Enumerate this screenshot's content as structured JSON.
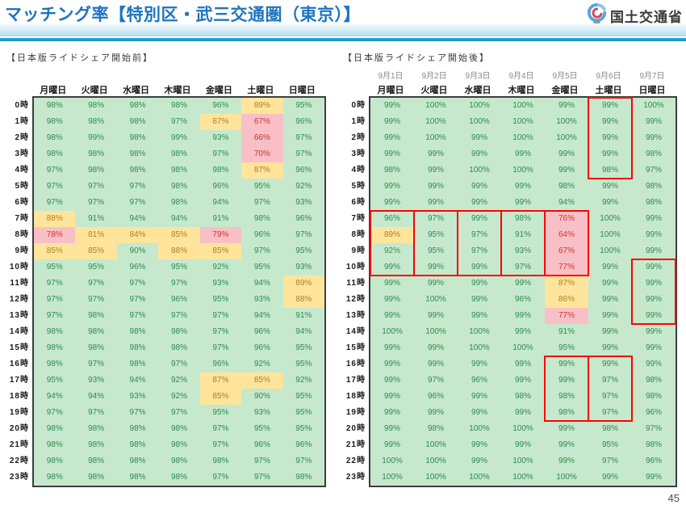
{
  "header": {
    "title": "マッチング率【特別区・武三交通圏（東京）】",
    "logo_text": "国土交通省"
  },
  "page_number": "45",
  "colors": {
    "title-blue": "#1e74c0",
    "teal": "#2aa9cf",
    "green-bg": "#c6e9ce",
    "green-text": "#2e8a4c",
    "yellow-bg": "#ffe49c",
    "yellow-text": "#b07d1e",
    "pink-bg": "#f9bfc6",
    "red-text": "#cc3333",
    "box-red": "#ff0000"
  },
  "tables": [
    {
      "id": "before",
      "caption": "【日本版ライドシェア開始前】",
      "unit": "%",
      "col_dates": null,
      "col_headers": [
        "月曜日",
        "火曜日",
        "水曜日",
        "木曜日",
        "金曜日",
        "土曜日",
        "日曜日"
      ],
      "row_headers": [
        "0時",
        "1時",
        "2時",
        "3時",
        "4時",
        "5時",
        "6時",
        "7時",
        "8時",
        "9時",
        "10時",
        "11時",
        "12時",
        "13時",
        "14時",
        "15時",
        "16時",
        "17時",
        "18時",
        "19時",
        "20時",
        "21時",
        "22時",
        "23時"
      ],
      "rows": [
        {
          "values": [
            98,
            98,
            98,
            98,
            96,
            89,
            95
          ],
          "status": "GGGGGYG"
        },
        {
          "values": [
            98,
            98,
            98,
            97,
            87,
            67,
            96
          ],
          "status": "GGGGYRG"
        },
        {
          "values": [
            98,
            99,
            98,
            99,
            93,
            66,
            97
          ],
          "status": "GGGGGRG"
        },
        {
          "values": [
            98,
            98,
            98,
            98,
            97,
            70,
            97
          ],
          "status": "GGGGGRG"
        },
        {
          "values": [
            97,
            98,
            98,
            98,
            98,
            87,
            96
          ],
          "status": "GGGGGYG"
        },
        {
          "values": [
            97,
            97,
            97,
            98,
            96,
            95,
            92
          ],
          "status": "GGGGGGG"
        },
        {
          "values": [
            97,
            97,
            97,
            98,
            94,
            97,
            93
          ],
          "status": "GGGGGGG"
        },
        {
          "values": [
            88,
            91,
            94,
            94,
            91,
            98,
            96
          ],
          "status": "YGGGGGG"
        },
        {
          "values": [
            78,
            81,
            84,
            85,
            79,
            96,
            97
          ],
          "status": "RYYYRGG"
        },
        {
          "values": [
            85,
            85,
            90,
            88,
            85,
            97,
            95
          ],
          "status": "YYGYYGG"
        },
        {
          "values": [
            95,
            95,
            96,
            95,
            92,
            95,
            93
          ],
          "status": "GGGGGGG"
        },
        {
          "values": [
            97,
            97,
            97,
            97,
            93,
            94,
            89
          ],
          "status": "GGGGGGY"
        },
        {
          "values": [
            97,
            97,
            97,
            96,
            95,
            93,
            88
          ],
          "status": "GGGGGGY"
        },
        {
          "values": [
            97,
            98,
            97,
            97,
            97,
            94,
            91
          ],
          "status": "GGGGGGG"
        },
        {
          "values": [
            98,
            98,
            98,
            98,
            97,
            96,
            94
          ],
          "status": "GGGGGGG"
        },
        {
          "values": [
            98,
            98,
            98,
            98,
            97,
            96,
            95
          ],
          "status": "GGGGGGG"
        },
        {
          "values": [
            98,
            97,
            98,
            97,
            96,
            92,
            95
          ],
          "status": "GGGGGGG"
        },
        {
          "values": [
            95,
            93,
            94,
            92,
            87,
            85,
            92
          ],
          "status": "GGGGYYG"
        },
        {
          "values": [
            94,
            94,
            93,
            92,
            85,
            90,
            95
          ],
          "status": "GGGGYGG"
        },
        {
          "values": [
            97,
            97,
            97,
            97,
            95,
            93,
            95
          ],
          "status": "GGGGGGG"
        },
        {
          "values": [
            98,
            98,
            98,
            98,
            97,
            95,
            95
          ],
          "status": "GGGGGGG"
        },
        {
          "values": [
            98,
            98,
            98,
            98,
            97,
            96,
            96
          ],
          "status": "GGGGGGG"
        },
        {
          "values": [
            98,
            98,
            98,
            98,
            98,
            97,
            97
          ],
          "status": "GGGGGGG"
        },
        {
          "values": [
            98,
            98,
            98,
            98,
            97,
            97,
            98
          ],
          "status": "GGGGGGG"
        }
      ],
      "highlight_boxes": []
    },
    {
      "id": "after",
      "caption": "【日本版ライドシェア開始後】",
      "unit": "%",
      "col_dates": [
        "9月1日",
        "9月2日",
        "9月3日",
        "9月4日",
        "9月5日",
        "9月6日",
        "9月7日"
      ],
      "col_headers": [
        "月曜日",
        "火曜日",
        "水曜日",
        "木曜日",
        "金曜日",
        "土曜日",
        "日曜日"
      ],
      "row_headers": [
        "0時",
        "1時",
        "2時",
        "3時",
        "4時",
        "5時",
        "6時",
        "7時",
        "8時",
        "9時",
        "10時",
        "11時",
        "12時",
        "13時",
        "14時",
        "15時",
        "16時",
        "17時",
        "18時",
        "19時",
        "20時",
        "21時",
        "22時",
        "23時"
      ],
      "rows": [
        {
          "values": [
            99,
            100,
            100,
            100,
            99,
            99,
            100
          ],
          "status": "GGGGGGG"
        },
        {
          "values": [
            99,
            100,
            100,
            100,
            100,
            99,
            99
          ],
          "status": "GGGGGGG"
        },
        {
          "values": [
            99,
            100,
            99,
            100,
            100,
            99,
            99
          ],
          "status": "GGGGGGG"
        },
        {
          "values": [
            99,
            99,
            99,
            99,
            99,
            99,
            98
          ],
          "status": "GGGGGGG"
        },
        {
          "values": [
            98,
            99,
            100,
            100,
            99,
            98,
            97
          ],
          "status": "GGGGGGG"
        },
        {
          "values": [
            99,
            99,
            99,
            99,
            98,
            99,
            98
          ],
          "status": "GGGGGGG"
        },
        {
          "values": [
            99,
            99,
            99,
            99,
            94,
            99,
            98
          ],
          "status": "GGGGGGG"
        },
        {
          "values": [
            96,
            97,
            99,
            98,
            76,
            100,
            99
          ],
          "status": "GGGGRGG"
        },
        {
          "values": [
            89,
            95,
            97,
            91,
            64,
            100,
            99
          ],
          "status": "YGGGRGG"
        },
        {
          "values": [
            92,
            95,
            97,
            93,
            67,
            100,
            99
          ],
          "status": "GGGGRGG"
        },
        {
          "values": [
            99,
            99,
            99,
            97,
            77,
            99,
            99
          ],
          "status": "GGGGRGG"
        },
        {
          "values": [
            99,
            99,
            99,
            99,
            87,
            99,
            99
          ],
          "status": "GGGGYGG"
        },
        {
          "values": [
            99,
            100,
            99,
            96,
            86,
            99,
            99
          ],
          "status": "GGGGYGG"
        },
        {
          "values": [
            99,
            99,
            99,
            99,
            77,
            99,
            99
          ],
          "status": "GGGGRGG"
        },
        {
          "values": [
            100,
            100,
            100,
            99,
            91,
            99,
            99
          ],
          "status": "GGGGGGG"
        },
        {
          "values": [
            99,
            99,
            100,
            100,
            95,
            99,
            99
          ],
          "status": "GGGGGGG"
        },
        {
          "values": [
            99,
            99,
            99,
            99,
            99,
            99,
            99
          ],
          "status": "GGGGGGG"
        },
        {
          "values": [
            99,
            97,
            96,
            99,
            99,
            97,
            98
          ],
          "status": "GGGGGGG"
        },
        {
          "values": [
            99,
            96,
            99,
            98,
            98,
            97,
            98
          ],
          "status": "GGGGGGG"
        },
        {
          "values": [
            99,
            99,
            99,
            99,
            98,
            97,
            96
          ],
          "status": "GGGGGGG"
        },
        {
          "values": [
            99,
            98,
            100,
            100,
            99,
            98,
            97
          ],
          "status": "GGGGGGG"
        },
        {
          "values": [
            99,
            100,
            99,
            99,
            99,
            95,
            98
          ],
          "status": "GGGGGGG"
        },
        {
          "values": [
            100,
            100,
            99,
            100,
            99,
            97,
            96
          ],
          "status": "GGGGGGG"
        },
        {
          "values": [
            100,
            100,
            100,
            100,
            100,
            99,
            99
          ],
          "status": "GGGGGGG"
        }
      ],
      "highlight_boxes": [
        {
          "col": 5,
          "row_start": 0,
          "row_end": 4
        },
        {
          "col": 0,
          "row_start": 7,
          "row_end": 10
        },
        {
          "col": 1,
          "row_start": 7,
          "row_end": 10
        },
        {
          "col": 2,
          "row_start": 7,
          "row_end": 10
        },
        {
          "col": 3,
          "row_start": 7,
          "row_end": 10
        },
        {
          "col": 4,
          "row_start": 7,
          "row_end": 10
        },
        {
          "col": 6,
          "row_start": 10,
          "row_end": 13
        },
        {
          "col": 4,
          "row_start": 16,
          "row_end": 19
        },
        {
          "col": 5,
          "row_start": 16,
          "row_end": 19
        }
      ]
    }
  ]
}
